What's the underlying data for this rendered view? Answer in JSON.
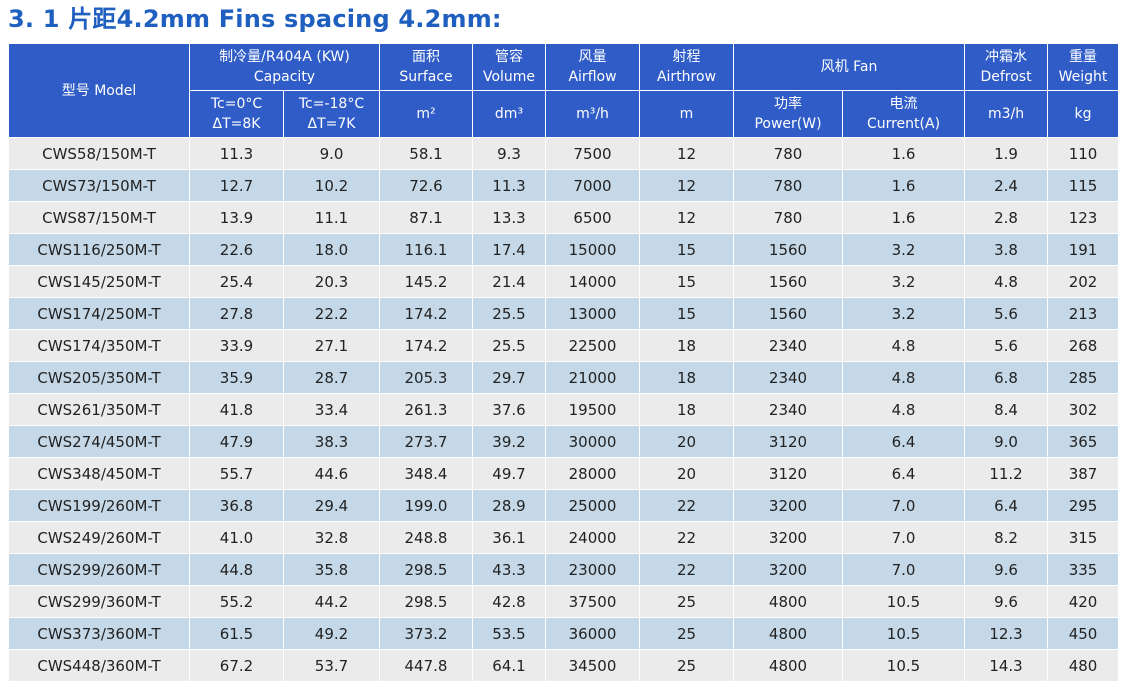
{
  "title": "3. 1 片距4.2mm Fins spacing 4.2mm:",
  "header": {
    "model": "型号 Model",
    "capacity_cn": "制冷量/R404A (KW)",
    "capacity_en": "Capacity",
    "tc1_a": "Tc=0°C",
    "tc1_b": "ΔT=8K",
    "tc2_a": "Tc=-18°C",
    "tc2_b": "ΔT=7K",
    "surface_cn": "面积",
    "surface_en": "Surface",
    "surface_unit": "m²",
    "volume_cn": "管容",
    "volume_en": "Volume",
    "volume_unit": "dm³",
    "airflow_cn": "风量",
    "airflow_en": "Airflow",
    "airflow_unit": "m³/h",
    "airthrow_cn": "射程",
    "airthrow_en": "Airthrow",
    "airthrow_unit": "m",
    "fan": "风机 Fan",
    "power_cn": "功率",
    "power_en": "Power(W)",
    "current_cn": "电流",
    "current_en": "Current(A)",
    "defrost_cn": "冲霜水",
    "defrost_en": "Defrost",
    "defrost_unit": "m3/h",
    "weight_cn": "重量",
    "weight_en": "Weight",
    "weight_unit": "kg"
  },
  "rows": [
    [
      "CWS58/150M-T",
      "11.3",
      "9.0",
      "58.1",
      "9.3",
      "7500",
      "12",
      "780",
      "1.6",
      "1.9",
      "110"
    ],
    [
      "CWS73/150M-T",
      "12.7",
      "10.2",
      "72.6",
      "11.3",
      "7000",
      "12",
      "780",
      "1.6",
      "2.4",
      "115"
    ],
    [
      "CWS87/150M-T",
      "13.9",
      "11.1",
      "87.1",
      "13.3",
      "6500",
      "12",
      "780",
      "1.6",
      "2.8",
      "123"
    ],
    [
      "CWS116/250M-T",
      "22.6",
      "18.0",
      "116.1",
      "17.4",
      "15000",
      "15",
      "1560",
      "3.2",
      "3.8",
      "191"
    ],
    [
      "CWS145/250M-T",
      "25.4",
      "20.3",
      "145.2",
      "21.4",
      "14000",
      "15",
      "1560",
      "3.2",
      "4.8",
      "202"
    ],
    [
      "CWS174/250M-T",
      "27.8",
      "22.2",
      "174.2",
      "25.5",
      "13000",
      "15",
      "1560",
      "3.2",
      "5.6",
      "213"
    ],
    [
      "CWS174/350M-T",
      "33.9",
      "27.1",
      "174.2",
      "25.5",
      "22500",
      "18",
      "2340",
      "4.8",
      "5.6",
      "268"
    ],
    [
      "CWS205/350M-T",
      "35.9",
      "28.7",
      "205.3",
      "29.7",
      "21000",
      "18",
      "2340",
      "4.8",
      "6.8",
      "285"
    ],
    [
      "CWS261/350M-T",
      "41.8",
      "33.4",
      "261.3",
      "37.6",
      "19500",
      "18",
      "2340",
      "4.8",
      "8.4",
      "302"
    ],
    [
      "CWS274/450M-T",
      "47.9",
      "38.3",
      "273.7",
      "39.2",
      "30000",
      "20",
      "3120",
      "6.4",
      "9.0",
      "365"
    ],
    [
      "CWS348/450M-T",
      "55.7",
      "44.6",
      "348.4",
      "49.7",
      "28000",
      "20",
      "3120",
      "6.4",
      "11.2",
      "387"
    ],
    [
      "CWS199/260M-T",
      "36.8",
      "29.4",
      "199.0",
      "28.9",
      "25000",
      "22",
      "3200",
      "7.0",
      "6.4",
      "295"
    ],
    [
      "CWS249/260M-T",
      "41.0",
      "32.8",
      "248.8",
      "36.1",
      "24000",
      "22",
      "3200",
      "7.0",
      "8.2",
      "315"
    ],
    [
      "CWS299/260M-T",
      "44.8",
      "35.8",
      "298.5",
      "43.3",
      "23000",
      "22",
      "3200",
      "7.0",
      "9.6",
      "335"
    ],
    [
      "CWS299/360M-T",
      "55.2",
      "44.2",
      "298.5",
      "42.8",
      "37500",
      "25",
      "4800",
      "10.5",
      "9.6",
      "420"
    ],
    [
      "CWS373/360M-T",
      "61.5",
      "49.2",
      "373.2",
      "53.5",
      "36000",
      "25",
      "4800",
      "10.5",
      "12.3",
      "450"
    ],
    [
      "CWS448/360M-T",
      "67.2",
      "53.7",
      "447.8",
      "64.1",
      "34500",
      "25",
      "4800",
      "10.5",
      "14.3",
      "480"
    ]
  ]
}
